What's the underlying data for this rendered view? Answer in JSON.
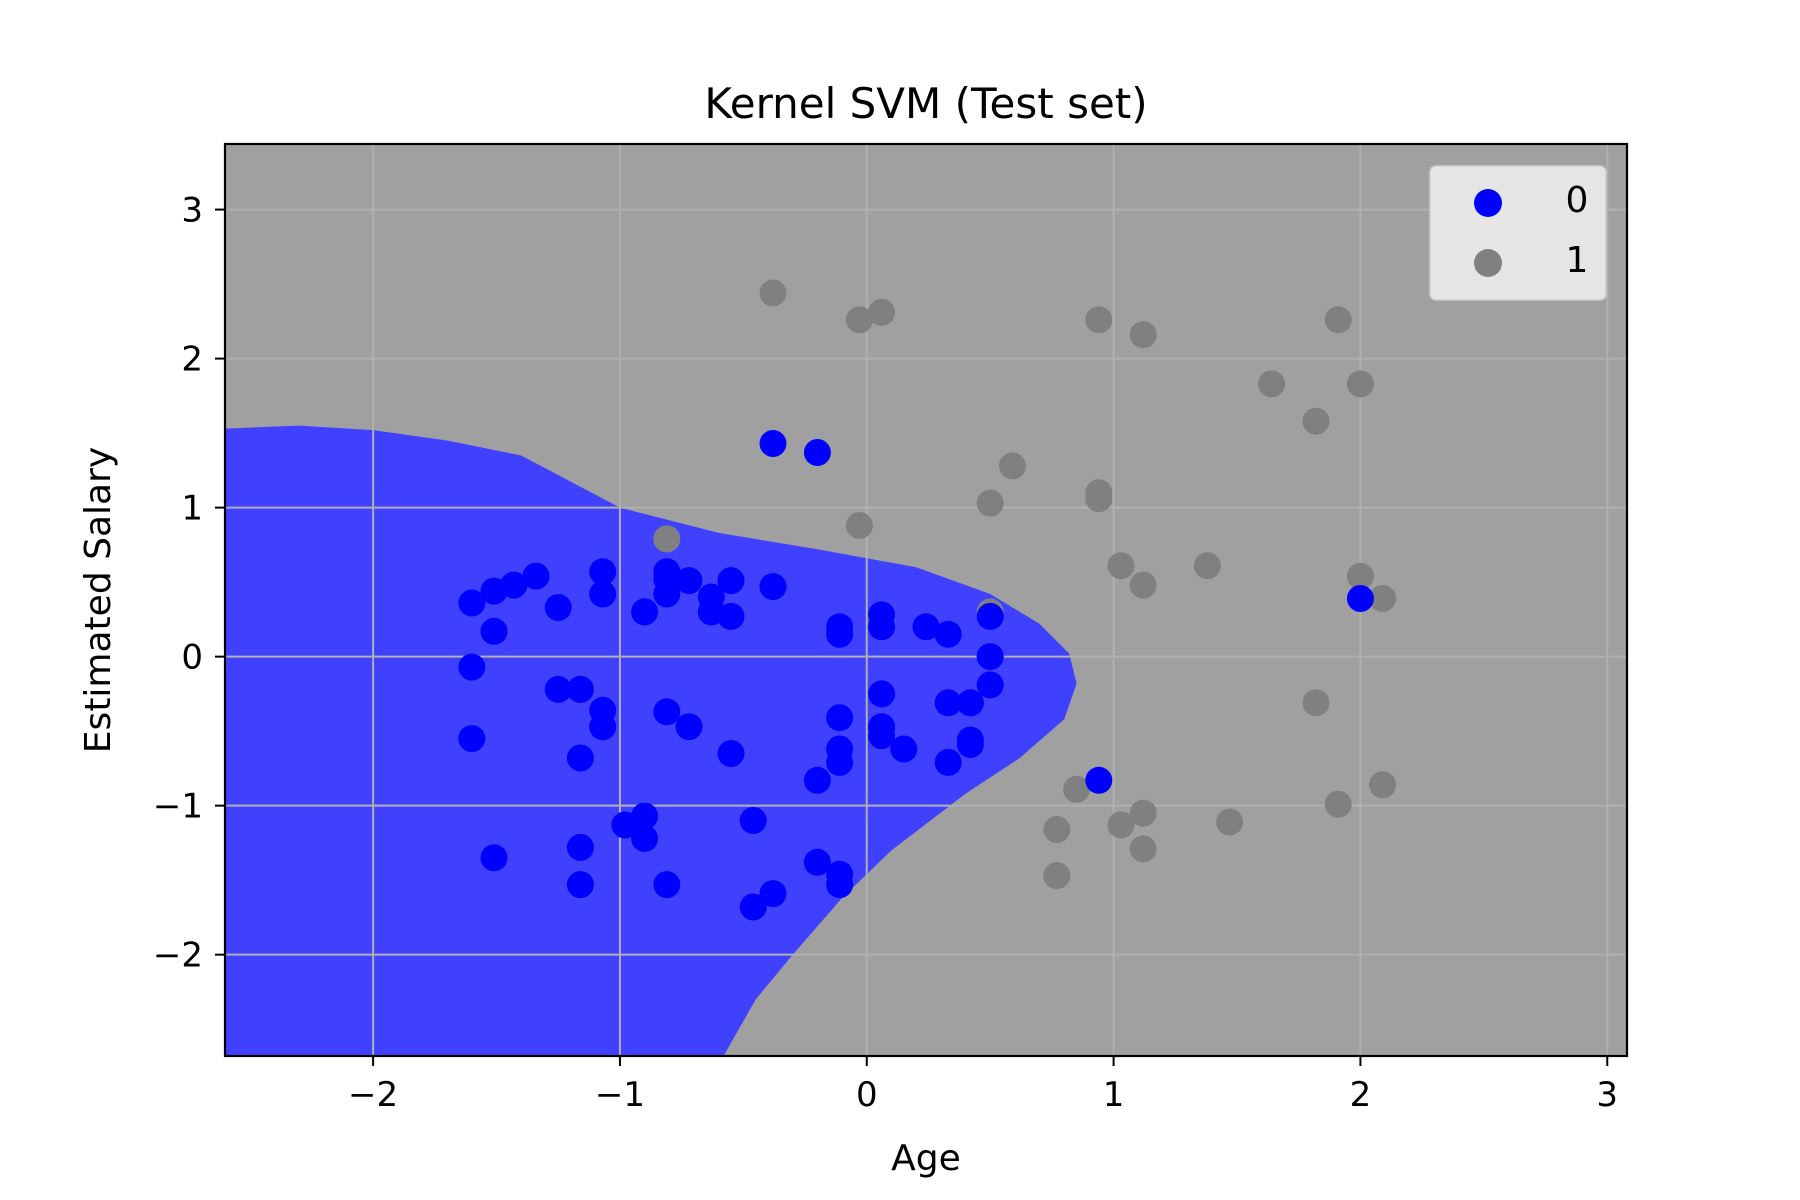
{
  "chart_data": {
    "type": "scatter",
    "title": "Kernel SVM (Test set)",
    "xlabel": "Age",
    "ylabel": "Estimated Salary",
    "xlim": [
      -2.6,
      3.08
    ],
    "ylim": [
      -2.68,
      3.44
    ],
    "xticks": [
      -2,
      -1,
      0,
      1,
      2,
      3
    ],
    "yticks": [
      -2,
      -1,
      0,
      1,
      2,
      3
    ],
    "xtick_labels": [
      "−2",
      "−1",
      "0",
      "1",
      "2",
      "3"
    ],
    "ytick_labels": [
      "−2",
      "−1",
      "0",
      "1",
      "2",
      "3"
    ],
    "grid": true,
    "legend_position": "top-right",
    "background_regions": {
      "class_0_color": "#4040ff",
      "class_1_color": "#a0a0a0"
    },
    "decision_boundary": [
      [
        -2.6,
        1.53
      ],
      [
        -2.3,
        1.55
      ],
      [
        -2.0,
        1.52
      ],
      [
        -1.7,
        1.45
      ],
      [
        -1.4,
        1.35
      ],
      [
        -1.0,
        1.0
      ],
      [
        -0.6,
        0.83
      ],
      [
        -0.2,
        0.72
      ],
      [
        0.2,
        0.6
      ],
      [
        0.5,
        0.42
      ],
      [
        0.7,
        0.22
      ],
      [
        0.82,
        0.02
      ],
      [
        0.85,
        -0.18
      ],
      [
        0.8,
        -0.42
      ],
      [
        0.62,
        -0.68
      ],
      [
        0.4,
        -0.92
      ],
      [
        0.1,
        -1.3
      ],
      [
        -0.1,
        -1.62
      ],
      [
        -0.3,
        -2.0
      ],
      [
        -0.45,
        -2.3
      ],
      [
        -0.58,
        -2.68
      ]
    ],
    "series": [
      {
        "name": "0",
        "color": "#0000ff",
        "points": [
          [
            -1.6,
            0.36
          ],
          [
            -1.51,
            0.44
          ],
          [
            -1.43,
            0.48
          ],
          [
            -1.34,
            0.54
          ],
          [
            -1.25,
            0.33
          ],
          [
            -1.51,
            0.17
          ],
          [
            -1.6,
            -0.07
          ],
          [
            -1.6,
            -0.55
          ],
          [
            -1.51,
            -1.35
          ],
          [
            -1.25,
            -0.22
          ],
          [
            -1.16,
            -0.22
          ],
          [
            -1.07,
            -0.36
          ],
          [
            -1.07,
            -0.47
          ],
          [
            -1.16,
            -0.68
          ],
          [
            -1.16,
            -1.28
          ],
          [
            -1.16,
            -1.53
          ],
          [
            -1.07,
            0.57
          ],
          [
            -1.07,
            0.42
          ],
          [
            -0.9,
            0.3
          ],
          [
            -0.81,
            0.57
          ],
          [
            -0.81,
            0.52
          ],
          [
            -0.81,
            0.42
          ],
          [
            -0.72,
            0.51
          ],
          [
            -0.63,
            0.4
          ],
          [
            -0.63,
            0.3
          ],
          [
            -0.55,
            0.51
          ],
          [
            -0.55,
            0.27
          ],
          [
            -0.38,
            0.47
          ],
          [
            -0.81,
            -0.37
          ],
          [
            -0.72,
            -0.47
          ],
          [
            -0.55,
            -0.65
          ],
          [
            -0.98,
            -1.13
          ],
          [
            -0.9,
            -1.07
          ],
          [
            -0.9,
            -1.22
          ],
          [
            -0.81,
            -1.53
          ],
          [
            -0.46,
            -1.1
          ],
          [
            -0.38,
            -1.59
          ],
          [
            -0.46,
            -1.68
          ],
          [
            -0.2,
            -1.38
          ],
          [
            -0.11,
            -1.46
          ],
          [
            -0.11,
            -1.53
          ],
          [
            -0.2,
            -0.83
          ],
          [
            -0.11,
            -0.71
          ],
          [
            -0.11,
            -0.62
          ],
          [
            -0.11,
            -0.41
          ],
          [
            -0.11,
            0.2
          ],
          [
            -0.11,
            0.15
          ],
          [
            0.06,
            0.28
          ],
          [
            0.06,
            0.2
          ],
          [
            0.06,
            -0.25
          ],
          [
            0.06,
            -0.47
          ],
          [
            0.06,
            -0.53
          ],
          [
            0.15,
            -0.62
          ],
          [
            0.24,
            0.2
          ],
          [
            0.33,
            0.15
          ],
          [
            0.33,
            -0.31
          ],
          [
            0.42,
            -0.31
          ],
          [
            0.42,
            -0.56
          ],
          [
            0.42,
            -0.59
          ],
          [
            0.33,
            -0.71
          ],
          [
            0.5,
            0.27
          ],
          [
            0.5,
            0.0
          ],
          [
            0.5,
            -0.19
          ],
          [
            -0.38,
            1.43
          ],
          [
            -0.2,
            1.37
          ],
          [
            0.94,
            -0.83
          ],
          [
            2.0,
            0.39
          ]
        ]
      },
      {
        "name": "1",
        "color": "#808080",
        "points": [
          [
            -0.38,
            2.44
          ],
          [
            -0.03,
            2.26
          ],
          [
            0.06,
            2.31
          ],
          [
            0.94,
            2.26
          ],
          [
            1.12,
            2.16
          ],
          [
            1.91,
            2.26
          ],
          [
            1.64,
            1.83
          ],
          [
            2.0,
            1.83
          ],
          [
            1.82,
            1.58
          ],
          [
            0.59,
            1.28
          ],
          [
            0.5,
            1.03
          ],
          [
            0.94,
            1.1
          ],
          [
            0.94,
            1.06
          ],
          [
            -0.03,
            0.88
          ],
          [
            -0.81,
            0.79
          ],
          [
            1.03,
            0.61
          ],
          [
            1.12,
            0.48
          ],
          [
            1.38,
            0.61
          ],
          [
            2.0,
            0.54
          ],
          [
            2.09,
            0.39
          ],
          [
            0.06,
            0.27
          ],
          [
            0.5,
            0.3
          ],
          [
            1.82,
            -0.31
          ],
          [
            0.85,
            -0.89
          ],
          [
            0.77,
            -1.16
          ],
          [
            1.03,
            -1.13
          ],
          [
            1.12,
            -1.05
          ],
          [
            1.12,
            -1.29
          ],
          [
            0.77,
            -1.47
          ],
          [
            1.47,
            -1.11
          ],
          [
            1.91,
            -0.99
          ],
          [
            2.09,
            -0.86
          ]
        ]
      }
    ]
  }
}
